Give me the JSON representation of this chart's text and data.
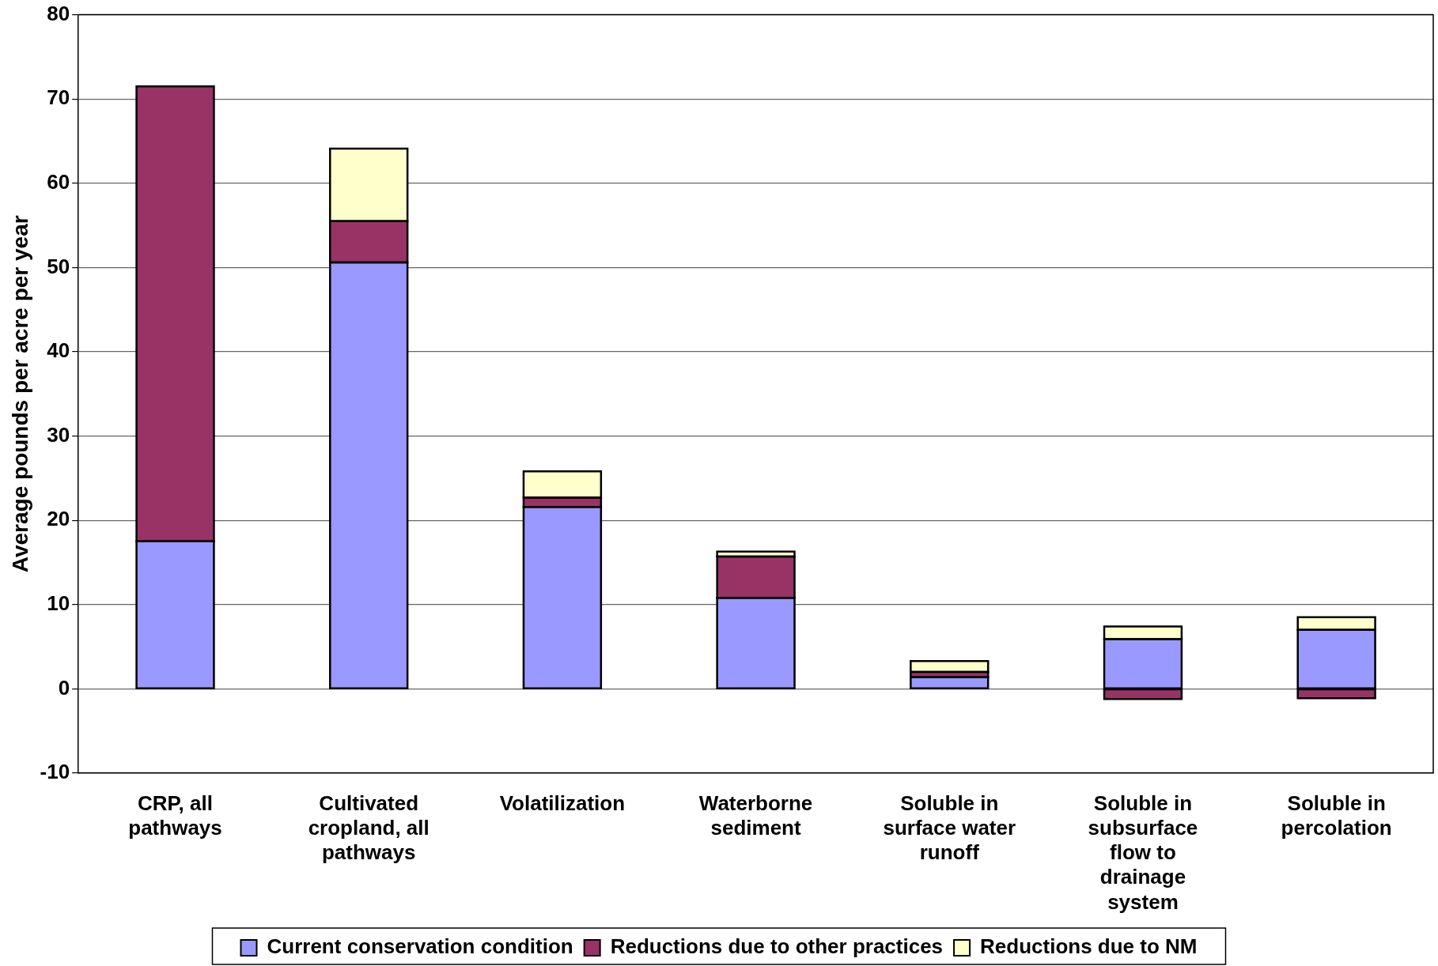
{
  "chart_data": {
    "type": "bar",
    "stacked": true,
    "ylabel": "Average pounds per acre per year",
    "categories": [
      "CRP, all pathways",
      "Cultivated cropland, all pathways",
      "Volatilization",
      "Waterborne sediment",
      "Soluble in surface water runoff",
      "Soluble in subsurface flow to drainage system",
      "Soluble in percolation"
    ],
    "series": [
      {
        "name": "Current conservation condition",
        "color": "#9999ff",
        "values": [
          17.5,
          50.6,
          21.6,
          10.8,
          1.4,
          5.9,
          7.0
        ]
      },
      {
        "name": "Reductions due to other practices",
        "color": "#993366",
        "values": [
          54,
          4.9,
          1.1,
          4.9,
          0.6,
          -1.2,
          -1.1
        ]
      },
      {
        "name": "Reductions due to NM",
        "color": "#ffffcc",
        "values": [
          null,
          8.6,
          3.1,
          0.6,
          1.3,
          1.5,
          1.5
        ]
      }
    ],
    "ylim": [
      -10,
      80
    ],
    "yticks": [
      -10,
      0,
      10,
      20,
      30,
      40,
      50,
      60,
      70,
      80
    ],
    "grid": "y",
    "legend": "bottom"
  }
}
